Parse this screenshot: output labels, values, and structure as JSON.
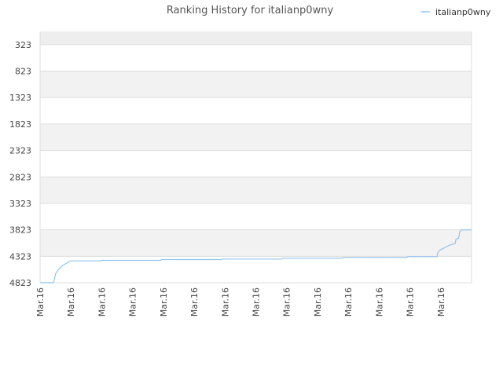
{
  "chart_data": {
    "type": "line",
    "title": "Ranking History for italianp0wny",
    "xlabel": "",
    "ylabel": "",
    "y_reversed": true,
    "ylim": [
      4823,
      73
    ],
    "y_ticks": [
      323,
      823,
      1323,
      1823,
      2323,
      2823,
      3323,
      3823,
      4323,
      4823
    ],
    "x_ticks": [
      "Mar.16",
      "Mar.16",
      "Mar.16",
      "Mar.16",
      "Mar.16",
      "Mar.16",
      "Mar.16",
      "Mar.16",
      "Mar.16",
      "Mar.16",
      "Mar.16",
      "Mar.16",
      "Mar.16",
      "Mar.16"
    ],
    "x_range": [
      0,
      100
    ],
    "grid": true,
    "legend_position": "top-right",
    "series": [
      {
        "name": "italianp0wny",
        "color": "#90c4ee",
        "x": [
          0,
          3,
          3.2,
          3.6,
          4.2,
          5,
          6,
          7,
          14,
          14.2,
          28,
          28.2,
          42,
          42.3,
          56,
          56.3,
          70,
          70.3,
          85,
          85.2,
          92,
          92.2,
          92.6,
          93.3,
          94.2,
          95,
          96.2,
          96.4,
          97,
          97.3,
          97.6,
          100
        ],
        "values": [
          4823,
          4823,
          4800,
          4650,
          4580,
          4510,
          4460,
          4410,
          4410,
          4400,
          4400,
          4385,
          4385,
          4375,
          4375,
          4360,
          4360,
          4345,
          4345,
          4330,
          4330,
          4250,
          4210,
          4180,
          4140,
          4110,
          4080,
          4000,
          3980,
          3850,
          3825,
          3823
        ]
      }
    ]
  }
}
